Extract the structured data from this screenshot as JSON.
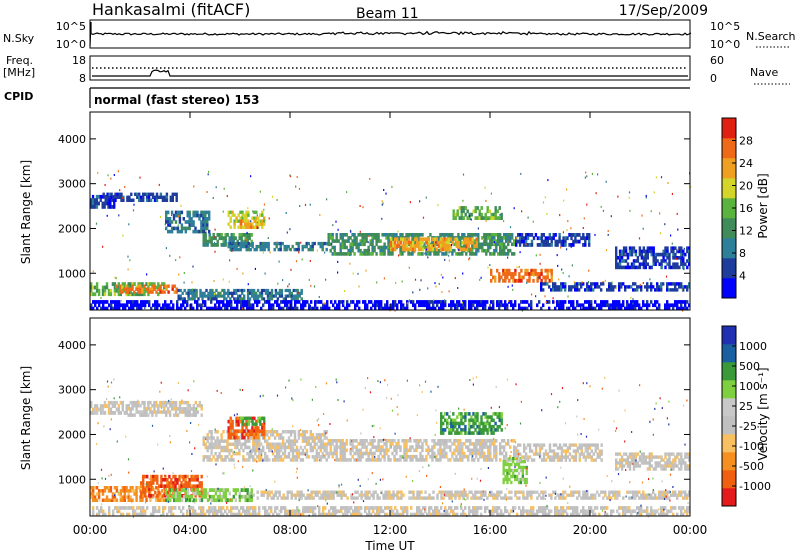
{
  "header": {
    "station": "Hankasalmi (fitACF)",
    "beam": "Beam 11",
    "date": "17/Sep/2009"
  },
  "strips": {
    "nsky": {
      "label": "N.Sky",
      "left_ticks": [
        "10^5",
        "10^0"
      ]
    },
    "nsearch": {
      "label": "N.Search",
      "right_ticks": [
        "10^5",
        "10^0"
      ]
    },
    "freq": {
      "label_line1": "Freq.",
      "label_line2": "[MHz]",
      "left_ticks": [
        "18",
        "8"
      ]
    },
    "nave": {
      "label": "Nave",
      "right_ticks": [
        "60",
        "0"
      ]
    },
    "cpid": {
      "label": "CPID",
      "mode_text": "normal (fast stereo) 153"
    }
  },
  "chart_data": [
    {
      "type": "heatmap",
      "panel": "power",
      "ylabel": "Slant Range [km]",
      "xlabel": "",
      "yticks": [
        "1000",
        "2000",
        "3000",
        "4000"
      ],
      "ylim": [
        180,
        4600
      ],
      "xlim": [
        0,
        24
      ],
      "colorbar": {
        "label": "Power [dB]",
        "ticks": [
          "28",
          "24",
          "20",
          "16",
          "12",
          "8",
          "4"
        ],
        "colors": [
          "#0000ff",
          "#1e3c9c",
          "#2e7f9a",
          "#3f8b5a",
          "#5ab33e",
          "#d3d52a",
          "#f0a020",
          "#ef6a18",
          "#e02010"
        ]
      },
      "regions": [
        {
          "t0": 0.0,
          "t1": 1.0,
          "r0": 2450,
          "r1": 2750,
          "level": 1
        },
        {
          "t0": 0.5,
          "t1": 3.5,
          "r0": 2600,
          "r1": 2800,
          "level": 1
        },
        {
          "t0": 3.0,
          "t1": 4.8,
          "r0": 1900,
          "r1": 2400,
          "level": 2
        },
        {
          "t0": 4.5,
          "t1": 6.5,
          "r0": 1600,
          "r1": 1900,
          "level": 3
        },
        {
          "t0": 5.5,
          "t1": 7.0,
          "r0": 2000,
          "r1": 2400,
          "level": 5
        },
        {
          "t0": 6.0,
          "t1": 6.8,
          "r0": 2000,
          "r1": 2200,
          "level": 6
        },
        {
          "t0": 5.5,
          "t1": 9.5,
          "r0": 1500,
          "r1": 1700,
          "level": 2
        },
        {
          "t0": 9.5,
          "t1": 17.0,
          "r0": 1400,
          "r1": 1900,
          "level": 3
        },
        {
          "t0": 12.0,
          "t1": 15.5,
          "r0": 1500,
          "r1": 1800,
          "level": 6
        },
        {
          "t0": 14.5,
          "t1": 16.5,
          "r0": 2200,
          "r1": 2500,
          "level": 4
        },
        {
          "t0": 16.0,
          "t1": 18.5,
          "r0": 800,
          "r1": 1100,
          "level": 7
        },
        {
          "t0": 17.0,
          "t1": 20.0,
          "r0": 1600,
          "r1": 1900,
          "level": 1
        },
        {
          "t0": 21.0,
          "t1": 24.0,
          "r0": 1100,
          "r1": 1600,
          "level": 1
        },
        {
          "t0": 0.0,
          "t1": 3.0,
          "r0": 500,
          "r1": 800,
          "level": 4
        },
        {
          "t0": 1.0,
          "t1": 3.5,
          "r0": 550,
          "r1": 750,
          "level": 7
        },
        {
          "t0": 3.5,
          "t1": 8.5,
          "r0": 400,
          "r1": 650,
          "level": 2
        },
        {
          "t0": 0.0,
          "t1": 24.0,
          "r0": 180,
          "r1": 400,
          "level": 0
        },
        {
          "t0": 18.0,
          "t1": 24.0,
          "r0": 600,
          "r1": 800,
          "level": 1
        }
      ]
    },
    {
      "type": "heatmap",
      "panel": "velocity",
      "ylabel": "Slant Range [km]",
      "xlabel": "Time UT",
      "yticks": [
        "1000",
        "2000",
        "3000",
        "4000"
      ],
      "ylim": [
        180,
        4600
      ],
      "xlim": [
        0,
        24
      ],
      "xticks": [
        "00:00",
        "04:00",
        "08:00",
        "12:00",
        "16:00",
        "20:00",
        "00:00"
      ],
      "colorbar": {
        "label": "Velocity [m s⁻¹]",
        "ticks": [
          "1000",
          "500",
          "100",
          "25",
          "-25",
          "-100",
          "-500",
          "-1000"
        ],
        "colors": [
          "#e41a1c",
          "#f06010",
          "#f59020",
          "#f8c060",
          "#c0c0c0",
          "#c8c8c8",
          "#7fd040",
          "#3a9a3a",
          "#1a5fa0",
          "#2030b0"
        ]
      },
      "regions": [
        {
          "t0": 0.0,
          "t1": 1.5,
          "r0": 2450,
          "r1": 2750,
          "level": 4
        },
        {
          "t0": 1.5,
          "t1": 4.5,
          "r0": 2400,
          "r1": 2750,
          "level": 4
        },
        {
          "t0": 4.5,
          "t1": 9.5,
          "r0": 1400,
          "r1": 2100,
          "level": 4
        },
        {
          "t0": 5.5,
          "t1": 7.0,
          "r0": 1900,
          "r1": 2400,
          "level": 1
        },
        {
          "t0": 6.0,
          "t1": 7.0,
          "r0": 2200,
          "r1": 2400,
          "level": 7
        },
        {
          "t0": 9.5,
          "t1": 17.0,
          "r0": 1400,
          "r1": 1900,
          "level": 4
        },
        {
          "t0": 14.0,
          "t1": 16.5,
          "r0": 2000,
          "r1": 2500,
          "level": 7
        },
        {
          "t0": 16.5,
          "t1": 17.5,
          "r0": 900,
          "r1": 1500,
          "level": 6
        },
        {
          "t0": 17.0,
          "t1": 20.5,
          "r0": 1400,
          "r1": 1800,
          "level": 4
        },
        {
          "t0": 21.0,
          "t1": 24.0,
          "r0": 1200,
          "r1": 1600,
          "level": 4
        },
        {
          "t0": 0.0,
          "t1": 3.0,
          "r0": 500,
          "r1": 850,
          "level": 2
        },
        {
          "t0": 2.0,
          "t1": 4.5,
          "r0": 600,
          "r1": 1100,
          "level": 1
        },
        {
          "t0": 3.0,
          "t1": 6.5,
          "r0": 500,
          "r1": 800,
          "level": 6
        },
        {
          "t0": 6.5,
          "t1": 24.0,
          "r0": 550,
          "r1": 750,
          "level": 4
        },
        {
          "t0": 0.0,
          "t1": 24.0,
          "r0": 180,
          "r1": 400,
          "level": 4
        }
      ]
    }
  ]
}
